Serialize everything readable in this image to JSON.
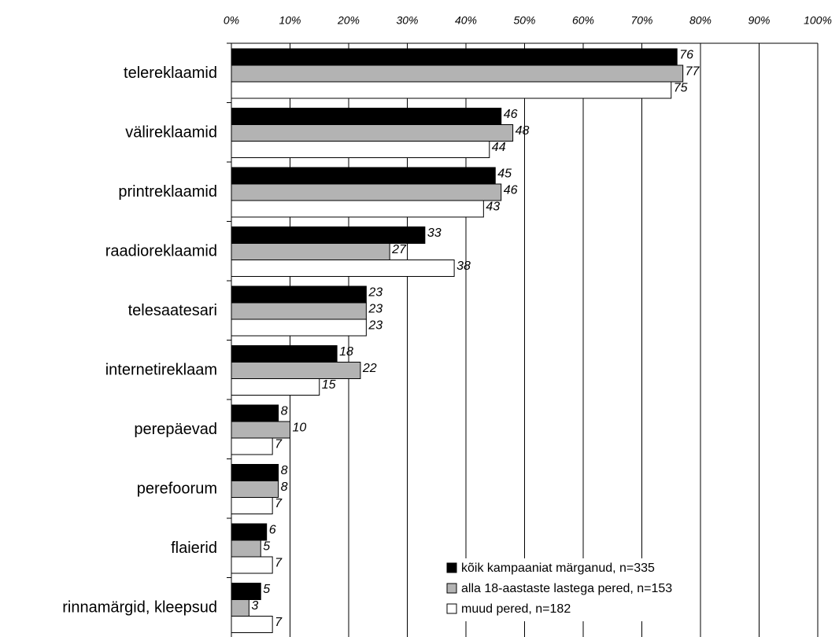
{
  "chart_data": {
    "type": "bar",
    "orientation": "horizontal",
    "categories": [
      "telereklaamid",
      "välireklaamid",
      "printreklaamid",
      "raadioreklaamid",
      "telesaatesari",
      "internetireklaam",
      "perepäevad",
      "perefoorum",
      "flaierid",
      "rinnamärgid, kleepsud"
    ],
    "series": [
      {
        "name": "kõik kampaaniat märganud, n=335",
        "color": "#000000",
        "values": [
          76,
          46,
          45,
          33,
          23,
          18,
          8,
          8,
          6,
          5
        ]
      },
      {
        "name": "alla 18-aastaste lastega pered, n=153",
        "color": "#b3b3b3",
        "values": [
          77,
          48,
          46,
          27,
          23,
          22,
          10,
          8,
          5,
          3
        ]
      },
      {
        "name": "muud pered, n=182",
        "color": "#ffffff",
        "values": [
          75,
          44,
          43,
          38,
          23,
          15,
          7,
          7,
          7,
          7
        ]
      }
    ],
    "xlim": [
      0,
      100
    ],
    "xticks": [
      {
        "value": 0,
        "label": "0%"
      },
      {
        "value": 10,
        "label": "10%"
      },
      {
        "value": 20,
        "label": "20%"
      },
      {
        "value": 30,
        "label": "30%"
      },
      {
        "value": 40,
        "label": "40%"
      },
      {
        "value": 50,
        "label": "50%"
      },
      {
        "value": 60,
        "label": "60%"
      },
      {
        "value": 70,
        "label": "70%"
      },
      {
        "value": 80,
        "label": "80%"
      },
      {
        "value": 90,
        "label": "90%"
      },
      {
        "value": 100,
        "label": "100%"
      }
    ],
    "grid": true,
    "legend": "lower right"
  }
}
